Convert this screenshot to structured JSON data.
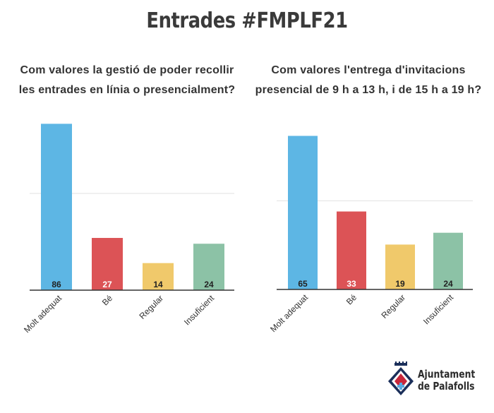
{
  "title": "Entrades #FMPLF21",
  "subtitles": {
    "left": [
      "Com valores la gestió de poder recollir",
      "les entrades en línia o presencialment?"
    ],
    "right": [
      "Com valores l'entrega d'invitacions",
      "presencial de 9 h a 13 h, i de 15 h a 19 h?"
    ]
  },
  "chart_data": [
    {
      "type": "bar",
      "categories": [
        "Molt adequat",
        "Bé",
        "Regular",
        "Insuficient"
      ],
      "values": [
        86,
        27,
        14,
        24
      ],
      "colors": [
        "#5db6e4",
        "#dc5356",
        "#f0c96b",
        "#8cc2a6"
      ],
      "ylim": [
        0,
        100
      ],
      "grid": true,
      "data_labels": true
    },
    {
      "type": "bar",
      "categories": [
        "Molt adequat",
        "Bé",
        "Regular",
        "Insuficient"
      ],
      "values": [
        65,
        33,
        19,
        24
      ],
      "colors": [
        "#5db6e4",
        "#dc5356",
        "#f0c96b",
        "#8cc2a6"
      ],
      "ylim": [
        0,
        75
      ],
      "grid": true,
      "data_labels": true
    }
  ],
  "logo": {
    "line1": "Ajuntament",
    "line2": "de Palafolls"
  }
}
